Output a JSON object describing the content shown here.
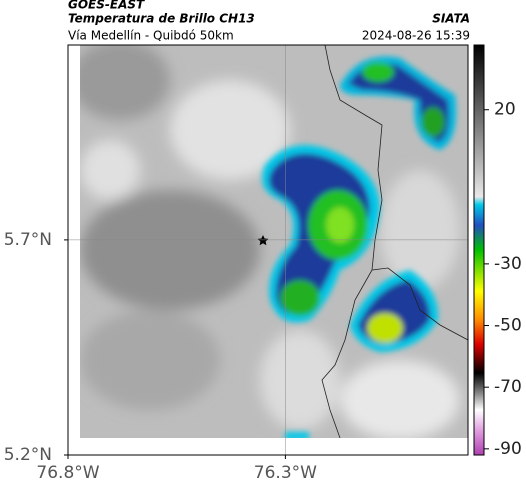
{
  "header": {
    "source": "GOES-EAST",
    "product": "Temperatura de Brillo CH13",
    "region": "Vía Medellín - Quibdó 50km",
    "agency": "SIATA",
    "datetime": "2024-08-26 15:39"
  },
  "map": {
    "xlim": [
      -76.8,
      -75.88
    ],
    "ylim": [
      5.2,
      6.153
    ],
    "xticks": [
      {
        "value": -76.8,
        "label": "76.8°W"
      },
      {
        "value": -76.3,
        "label": "76.3°W"
      }
    ],
    "yticks": [
      {
        "value": 5.7,
        "label": "5.7°N"
      },
      {
        "value": 5.2,
        "label": "5.2°N"
      }
    ],
    "grid": true
  },
  "colorbar": {
    "lim": [
      -92,
      41
    ],
    "ticks": [
      20,
      -30,
      -50,
      -70,
      -90
    ]
  }
}
